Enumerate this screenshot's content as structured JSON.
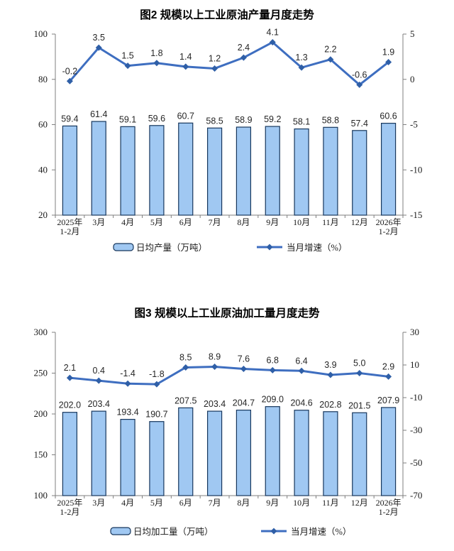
{
  "page": {
    "background": "#ffffff"
  },
  "chart_data": [
    {
      "type": "bar",
      "combo": "bar+line, dual axis",
      "title": "图2  规模以上工业原油产量月度走势",
      "categories": [
        "2025年\n1-2月",
        "3月",
        "4月",
        "5月",
        "6月",
        "7月",
        "8月",
        "9月",
        "10月",
        "11月",
        "12月",
        "2026年\n1-2月"
      ],
      "series": [
        {
          "name": "日均产量（万吨）",
          "type": "bar",
          "axis": "left",
          "values": [
            59.4,
            61.4,
            59.1,
            59.6,
            60.7,
            58.5,
            58.9,
            59.2,
            58.1,
            58.8,
            57.4,
            60.6
          ]
        },
        {
          "name": "当月增速（%）",
          "type": "line",
          "axis": "right",
          "values": [
            -0.2,
            3.5,
            1.5,
            1.8,
            1.4,
            1.2,
            2.4,
            4.1,
            1.3,
            2.2,
            -0.6,
            1.9
          ]
        }
      ],
      "left_axis": {
        "min": 20,
        "max": 100,
        "ticks": [
          100,
          80,
          60,
          40,
          20
        ]
      },
      "right_axis": {
        "min": -15,
        "max": 5,
        "ticks": [
          5,
          0,
          -5,
          -10,
          -15
        ]
      },
      "legend_position": "bottom",
      "grid": false,
      "colors": {
        "bar_fill": "#A0C8F2",
        "bar_stroke": "#17375D",
        "line": "#3E6EC0",
        "marker": "#2F5FA7",
        "axis": "#7F7F7F",
        "text": "#1A1A1A"
      }
    },
    {
      "type": "bar",
      "combo": "bar+line, dual axis",
      "title": "图3  规模以上工业原油加工量月度走势",
      "categories": [
        "2025年\n1-2月",
        "3月",
        "4月",
        "5月",
        "6月",
        "7月",
        "8月",
        "9月",
        "10月",
        "11月",
        "12月",
        "2026年\n1-2月"
      ],
      "series": [
        {
          "name": "日均加工量（万吨）",
          "type": "bar",
          "axis": "left",
          "values": [
            202.0,
            203.4,
            193.4,
            190.7,
            207.5,
            203.4,
            204.7,
            209.0,
            204.6,
            202.8,
            201.5,
            207.9
          ]
        },
        {
          "name": "当月增速（%）",
          "type": "line",
          "axis": "right",
          "values": [
            2.1,
            0.4,
            -1.4,
            -1.8,
            8.5,
            8.9,
            7.6,
            6.8,
            6.4,
            3.9,
            5.0,
            2.9
          ]
        }
      ],
      "left_axis": {
        "min": 100,
        "max": 300,
        "ticks": [
          300,
          250,
          200,
          150,
          100
        ]
      },
      "right_axis": {
        "min": -70,
        "max": 30,
        "ticks": [
          30,
          10,
          -10,
          -30,
          -50,
          -70
        ]
      },
      "legend_position": "bottom",
      "grid": false,
      "colors": {
        "bar_fill": "#A0C8F2",
        "bar_stroke": "#17375D",
        "line": "#3E6EC0",
        "marker": "#2F5FA7",
        "axis": "#7F7F7F",
        "text": "#1A1A1A"
      }
    }
  ]
}
